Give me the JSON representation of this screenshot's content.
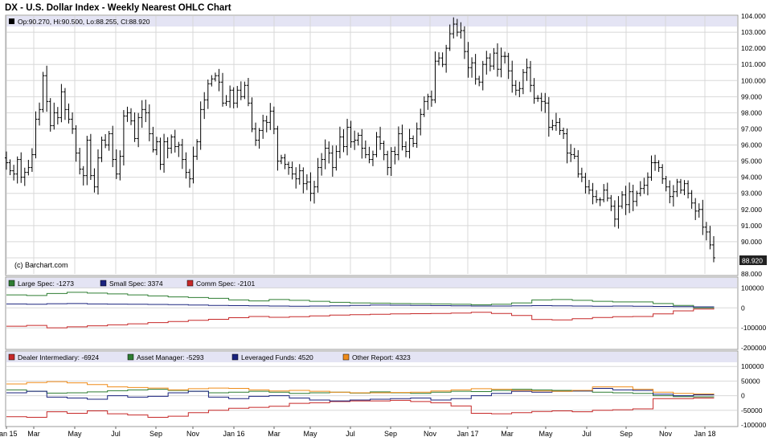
{
  "title": "DX - U.S. Dollar Index - Weekly Nearest OHLC Chart",
  "colors": {
    "header_band": "#e4e4f4",
    "grid": "#d8d8d8",
    "frame": "#999999",
    "price_bar": "#000000",
    "large_spec": "#2e7d32",
    "small_spec": "#1a237e",
    "comm_spec": "#c62828",
    "dealer": "#c62828",
    "asset_manager": "#2e7d32",
    "leveraged_funds": "#1a237e",
    "other_report": "#ef8c1a"
  },
  "chart_data": [
    {
      "type": "ohlc",
      "legend": "Op:90.270, Hi:90.500, Lo:88.255, Cl:88.920",
      "legend_icon_color": "#000000",
      "watermark": "(c) Barchart.com",
      "last_value_label": "88.920",
      "ylim": [
        88,
        104
      ],
      "y_ticks": [
        "104.000",
        "103.000",
        "102.000",
        "101.000",
        "100.000",
        "99.000",
        "98.000",
        "97.000",
        "96.000",
        "95.000",
        "94.000",
        "93.000",
        "92.000",
        "91.000",
        "90.000",
        "89.000",
        "88.000"
      ],
      "x_labels": [
        "Jan 15",
        "Mar",
        "May",
        "Jul",
        "Sep",
        "Nov",
        "Jan 16",
        "Mar",
        "May",
        "Jul",
        "Sep",
        "Nov",
        "Jan 17",
        "Mar",
        "May",
        "Jul",
        "Sep",
        "Nov",
        "Jan 18"
      ],
      "closes": [
        94.9,
        94.4,
        94.2,
        95.1,
        94.0,
        94.3,
        94.6,
        95.4,
        97.6,
        98.2,
        100.3,
        98.7,
        97.2,
        98.0,
        97.7,
        99.3,
        98.2,
        97.6,
        97.0,
        95.5,
        94.5,
        94.1,
        96.3,
        94.1,
        93.4,
        95.2,
        96.3,
        96.0,
        96.7,
        95.1,
        94.2,
        95.3,
        97.8,
        98.0,
        97.5,
        96.4,
        97.7,
        98.2,
        98.0,
        96.7,
        95.7,
        96.2,
        94.8,
        96.2,
        95.8,
        96.5,
        95.9,
        96.0,
        95.1,
        94.3,
        93.9,
        95.3,
        96.2,
        98.2,
        98.8,
        99.8,
        100.1,
        100.3,
        99.9,
        98.6,
        98.7,
        99.4,
        98.6,
        99.4,
        99.0,
        99.7,
        98.6,
        97.0,
        96.3,
        96.9,
        97.5,
        97.4,
        98.1,
        97.0,
        95.0,
        95.2,
        94.8,
        94.6,
        94.2,
        93.9,
        94.4,
        93.6,
        93.7,
        93.0,
        93.4,
        94.6,
        95.1,
        95.8,
        95.5,
        94.6,
        95.6,
        96.5,
        95.9,
        97.1,
        96.2,
        96.3,
        96.6,
        95.8,
        95.4,
        95.1,
        95.4,
        96.5,
        96.1,
        95.4,
        94.6,
        95.6,
        95.4,
        96.7,
        95.9,
        95.6,
        96.4,
        96.1,
        97.0,
        97.9,
        98.7,
        99.0,
        98.8,
        101.2,
        101.4,
        101.0,
        102.0,
        102.9,
        103.5,
        103.0,
        103.1,
        101.8,
        100.8,
        101.1,
        100.1,
        99.9,
        101.0,
        101.4,
        100.9,
        101.7,
        100.7,
        101.5,
        101.5,
        100.6,
        99.7,
        99.4,
        99.5,
        100.5,
        100.8,
        99.7,
        98.9,
        98.9,
        98.7,
        98.6,
        97.1,
        97.2,
        97.4,
        96.9,
        96.7,
        95.5,
        95.4,
        95.3,
        94.2,
        94.0,
        93.4,
        93.2,
        92.8,
        92.6,
        92.6,
        93.2,
        92.7,
        92.2,
        91.4,
        92.2,
        92.9,
        92.3,
        93.1,
        92.5,
        93.0,
        93.3,
        93.5,
        94.0,
        94.9,
        94.9,
        94.6,
        93.9,
        93.4,
        92.8,
        93.1,
        93.7,
        93.2,
        93.6,
        93.0,
        92.4,
        91.9,
        92.0,
        90.9,
        90.6,
        89.8,
        89.0
      ]
    },
    {
      "type": "line",
      "ylim": [
        -200000,
        150000
      ],
      "y_ticks": [
        "100000",
        "0",
        "-100000",
        "-200000"
      ],
      "series": [
        {
          "name": "Large Spec: -1273",
          "values": [
            65000,
            62000,
            72000,
            78000,
            74000,
            70000,
            65000,
            60000,
            55000,
            52000,
            48000,
            40000,
            35000,
            42000,
            38000,
            33000,
            28000,
            25000,
            24000,
            22000,
            21000,
            20000,
            18000,
            15000,
            18000,
            25000,
            40000,
            42000,
            38000,
            33000,
            30000,
            30000,
            22000,
            12000,
            0,
            -1273
          ]
        },
        {
          "name": "Small Spec: 3374",
          "values": [
            20000,
            18000,
            21000,
            22000,
            20000,
            19000,
            18000,
            17000,
            16000,
            14000,
            12000,
            11000,
            10000,
            9000,
            8000,
            9000,
            10000,
            12000,
            14000,
            13000,
            12000,
            11000,
            10000,
            9000,
            9000,
            10000,
            11000,
            10000,
            9000,
            8000,
            9000,
            8000,
            7000,
            6000,
            5000,
            3374
          ]
        },
        {
          "name": "Comm Spec: -2101",
          "values": [
            -92000,
            -88000,
            -100000,
            -95000,
            -90000,
            -85000,
            -80000,
            -74000,
            -68000,
            -62000,
            -57000,
            -49000,
            -43000,
            -47000,
            -44000,
            -40000,
            -36000,
            -34000,
            -32000,
            -30000,
            -29000,
            -28000,
            -26000,
            -22000,
            -28000,
            -38000,
            -58000,
            -60000,
            -54000,
            -48000,
            -44000,
            -43000,
            -30000,
            -15000,
            -6000,
            -2101
          ]
        }
      ]
    },
    {
      "type": "line",
      "ylim": [
        -100000,
        150000
      ],
      "y_ticks": [
        "100000",
        "50000",
        "0",
        "-50000",
        "-100000"
      ],
      "series": [
        {
          "name": "Dealer Intermediary: -6924",
          "values": [
            -72000,
            -74000,
            -55000,
            -60000,
            -52000,
            -62000,
            -66000,
            -74000,
            -70000,
            -58000,
            -50000,
            -43000,
            -40000,
            -36000,
            -26000,
            -24000,
            -20000,
            -18000,
            -18000,
            -16000,
            -20000,
            -24000,
            -35000,
            -60000,
            -62000,
            -58000,
            -54000,
            -52000,
            -55000,
            -50000,
            -48000,
            -45000,
            -10000,
            -10000,
            -8000,
            -6924
          ]
        },
        {
          "name": "Asset Manager: -5293",
          "values": [
            20000,
            15000,
            9000,
            10000,
            13000,
            17000,
            20000,
            22000,
            18000,
            15000,
            10000,
            12000,
            15000,
            12000,
            8000,
            10000,
            12000,
            9000,
            13000,
            10000,
            8000,
            12000,
            15000,
            14000,
            18000,
            22000,
            20000,
            18000,
            16000,
            12000,
            10000,
            8000,
            0,
            -3000,
            -4000,
            -5293
          ]
        },
        {
          "name": "Leveraged Funds: 4520",
          "values": [
            10000,
            15000,
            -5000,
            -8000,
            -12000,
            0,
            -5000,
            -2000,
            10000,
            15000,
            -5000,
            -10000,
            -2000,
            0,
            -8000,
            -15000,
            -18000,
            -15000,
            -12000,
            -10000,
            -8000,
            -15000,
            -10000,
            0,
            8000,
            15000,
            12000,
            15000,
            16000,
            25000,
            20000,
            18000,
            5000,
            0,
            3000,
            4520
          ]
        },
        {
          "name": "Other Report: 4323",
          "values": [
            40000,
            45000,
            48000,
            44000,
            38000,
            30000,
            28000,
            26000,
            20000,
            24000,
            26000,
            25000,
            20000,
            16000,
            18000,
            15000,
            12000,
            10000,
            10000,
            11000,
            12000,
            16000,
            20000,
            24000,
            22000,
            18000,
            16000,
            15000,
            18000,
            30000,
            30000,
            22000,
            12000,
            8000,
            6000,
            4323
          ]
        }
      ]
    }
  ]
}
